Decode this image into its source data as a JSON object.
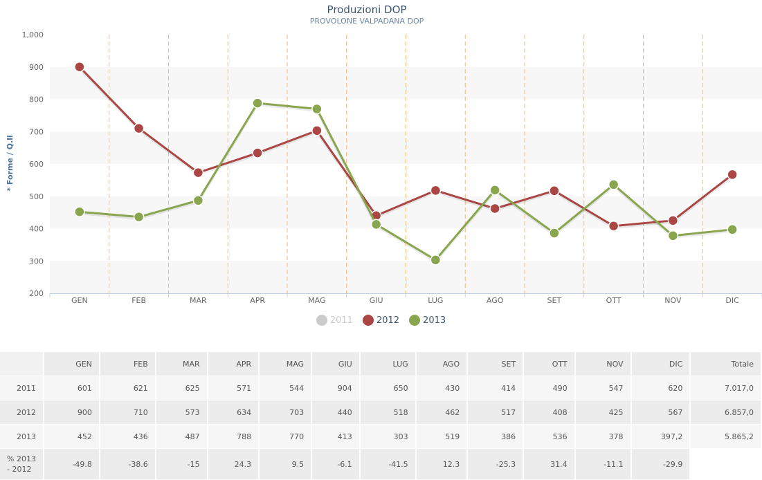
{
  "chart_data": {
    "type": "line",
    "title": "Produzioni DOP",
    "subtitle": "PROVOLONE VALPADANA DOP",
    "ylabel": "* Forme / Q.li",
    "xlabel": "",
    "ylim": [
      200,
      1000
    ],
    "yticks": [
      "200",
      "300",
      "400",
      "500",
      "600",
      "700",
      "800",
      "900",
      "1,000"
    ],
    "ytick_values": [
      200,
      300,
      400,
      500,
      600,
      700,
      800,
      900,
      1000
    ],
    "categories": [
      "GEN",
      "FEB",
      "MAR",
      "APR",
      "MAG",
      "GIU",
      "LUG",
      "AGO",
      "SET",
      "OTT",
      "NOV",
      "DIC"
    ],
    "legend_position": "bottom-center",
    "series": [
      {
        "name": "2011",
        "color": "#cccccc",
        "visible": false,
        "values": [
          601,
          621,
          625,
          571,
          544,
          904,
          650,
          430,
          414,
          490,
          547,
          620
        ]
      },
      {
        "name": "2012",
        "color": "#aa4643",
        "visible": true,
        "values": [
          900,
          710,
          573,
          634,
          703,
          440,
          518,
          462,
          517,
          408,
          425,
          567
        ]
      },
      {
        "name": "2013",
        "color": "#89a54e",
        "visible": true,
        "values": [
          452,
          436,
          487,
          788,
          770,
          413,
          303,
          519,
          386,
          536,
          378,
          397.2
        ]
      }
    ],
    "grid_color": "#f7f7f7",
    "separator_color": "#f5b97a"
  },
  "table": {
    "headers": [
      "GEN",
      "FEB",
      "MAR",
      "APR",
      "MAG",
      "GIU",
      "LUG",
      "AGO",
      "SET",
      "OTT",
      "NOV",
      "DIC",
      "Totale"
    ],
    "rows": [
      {
        "label": "2011",
        "cells": [
          "601",
          "621",
          "625",
          "571",
          "544",
          "904",
          "650",
          "430",
          "414",
          "490",
          "547",
          "620",
          "7.017,0"
        ]
      },
      {
        "label": "2012",
        "cells": [
          "900",
          "710",
          "573",
          "634",
          "703",
          "440",
          "518",
          "462",
          "517",
          "408",
          "425",
          "567",
          "6.857,0"
        ]
      },
      {
        "label": "2013",
        "cells": [
          "452",
          "436",
          "487",
          "788",
          "770",
          "413",
          "303",
          "519",
          "386",
          "536",
          "378",
          "397,2",
          "5.865,2"
        ]
      }
    ],
    "pct_row": {
      "label": "% 2013 - 2012",
      "cells": [
        "-49.8",
        "-38.6",
        "-15",
        "24.3",
        "9.5",
        "-6.1",
        "-41.5",
        "12.3",
        "-25.3",
        "31.4",
        "-11.1",
        "-29.9"
      ]
    }
  }
}
